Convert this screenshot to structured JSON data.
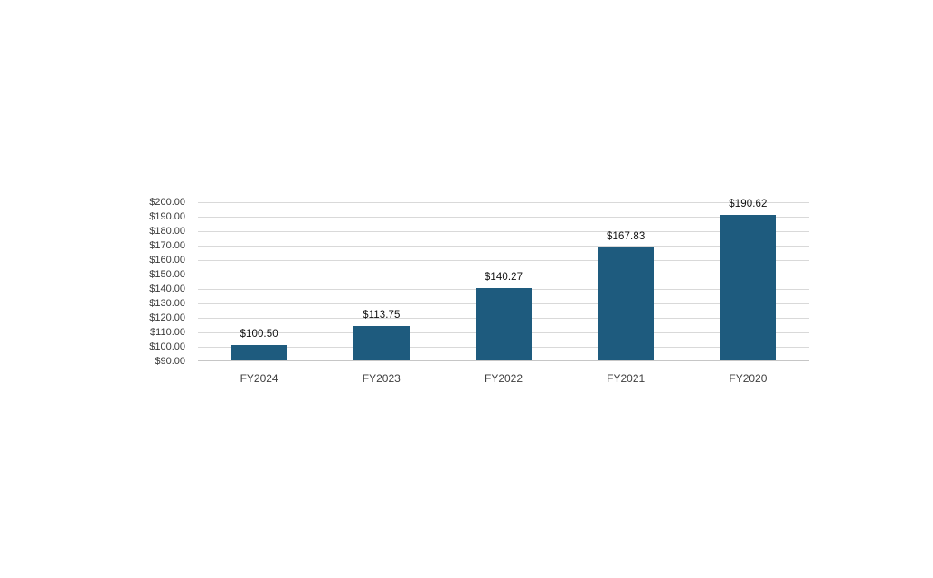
{
  "chart_data": {
    "type": "bar",
    "title": "",
    "xlabel": "",
    "ylabel": "",
    "categories": [
      "FY2024",
      "FY2023",
      "FY2022",
      "FY2021",
      "FY2020"
    ],
    "values": [
      100.5,
      113.75,
      140.27,
      167.83,
      190.62
    ],
    "data_labels": [
      "$100.50",
      "$113.75",
      "$140.27",
      "$167.83",
      "$190.62"
    ],
    "ylim": [
      90,
      200
    ],
    "ytick_step": 10,
    "ytick_labels": [
      "$200.00",
      "$190.00",
      "$180.00",
      "$170.00",
      "$160.00",
      "$150.00",
      "$140.00",
      "$130.00",
      "$120.00",
      "$110.00",
      "$100.00",
      "$90.00"
    ],
    "grid": true,
    "legend": false,
    "colors": {
      "bar_fill": "#1E5B7E",
      "gridline": "#D9D9D9",
      "axis_line": "#C6C6C6",
      "tick_label": "#3A3A3A",
      "category_label": "#3F3F3F",
      "data_label": "#111111",
      "background": "#FFFFFF"
    }
  }
}
